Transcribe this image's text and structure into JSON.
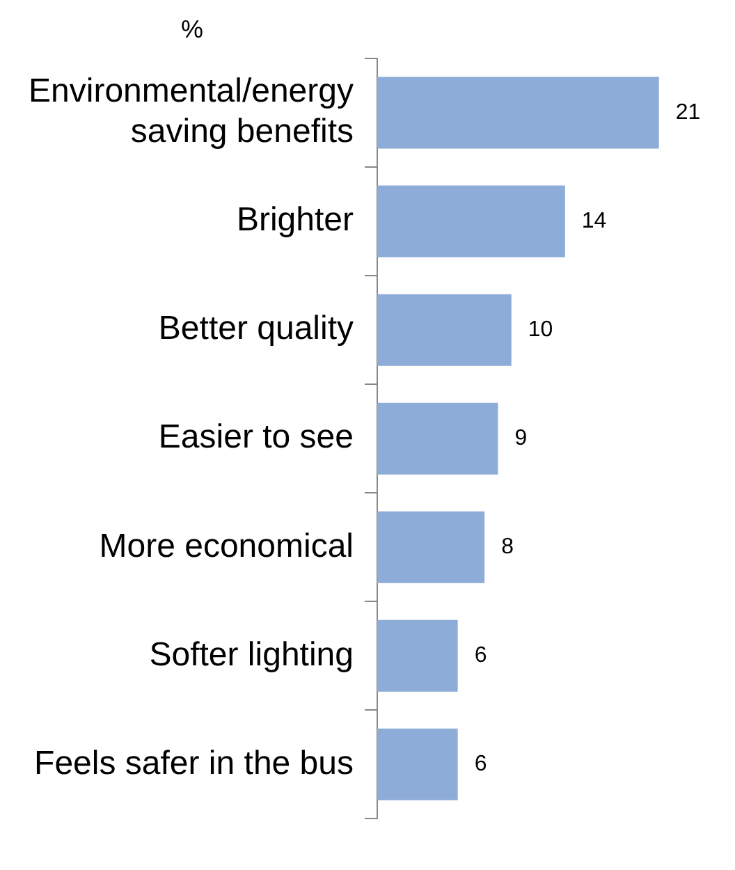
{
  "chart_data": {
    "type": "bar",
    "orientation": "horizontal",
    "title": "%",
    "categories": [
      "Environmental/energy saving benefits",
      "Brighter",
      "Better quality",
      "Easier to see",
      "More economical",
      "Softer lighting",
      "Feels safer in the bus"
    ],
    "values": [
      21,
      14,
      10,
      9,
      8,
      6,
      6
    ],
    "color": "#8eacd8",
    "data_labels": true,
    "grid": false,
    "legend": false
  }
}
